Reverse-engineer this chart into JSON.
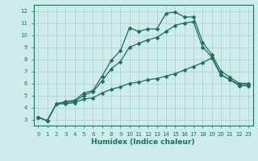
{
  "xlabel": "Humidex (Indice chaleur)",
  "xlim": [
    -0.5,
    23.5
  ],
  "ylim": [
    2.5,
    12.5
  ],
  "xticks": [
    0,
    1,
    2,
    3,
    4,
    5,
    6,
    7,
    8,
    9,
    10,
    11,
    12,
    13,
    14,
    15,
    16,
    17,
    18,
    19,
    20,
    21,
    22,
    23
  ],
  "yticks": [
    3,
    4,
    5,
    6,
    7,
    8,
    9,
    10,
    11,
    12
  ],
  "bg_color": "#ceecea",
  "line_color": "#1a6e62",
  "grid_color": "#aacfcc",
  "line1_y": [
    3.2,
    2.9,
    4.3,
    4.5,
    4.6,
    5.2,
    5.4,
    6.6,
    7.9,
    8.7,
    10.6,
    10.3,
    10.5,
    10.5,
    11.8,
    11.9,
    11.5,
    11.5,
    9.4,
    8.4,
    7.0,
    6.5,
    6.0,
    6.0
  ],
  "line2_y": [
    3.2,
    2.9,
    4.3,
    4.4,
    4.5,
    5.0,
    5.3,
    6.2,
    7.2,
    7.8,
    9.0,
    9.3,
    9.6,
    9.8,
    10.3,
    10.8,
    11.0,
    11.1,
    9.0,
    8.2,
    6.7,
    6.3,
    5.9,
    5.9
  ],
  "line3_y": [
    3.2,
    2.9,
    4.3,
    4.3,
    4.4,
    4.7,
    4.8,
    5.2,
    5.5,
    5.7,
    6.0,
    6.1,
    6.3,
    6.4,
    6.6,
    6.8,
    7.1,
    7.4,
    7.7,
    8.1,
    6.7,
    6.3,
    5.8,
    5.8
  ]
}
